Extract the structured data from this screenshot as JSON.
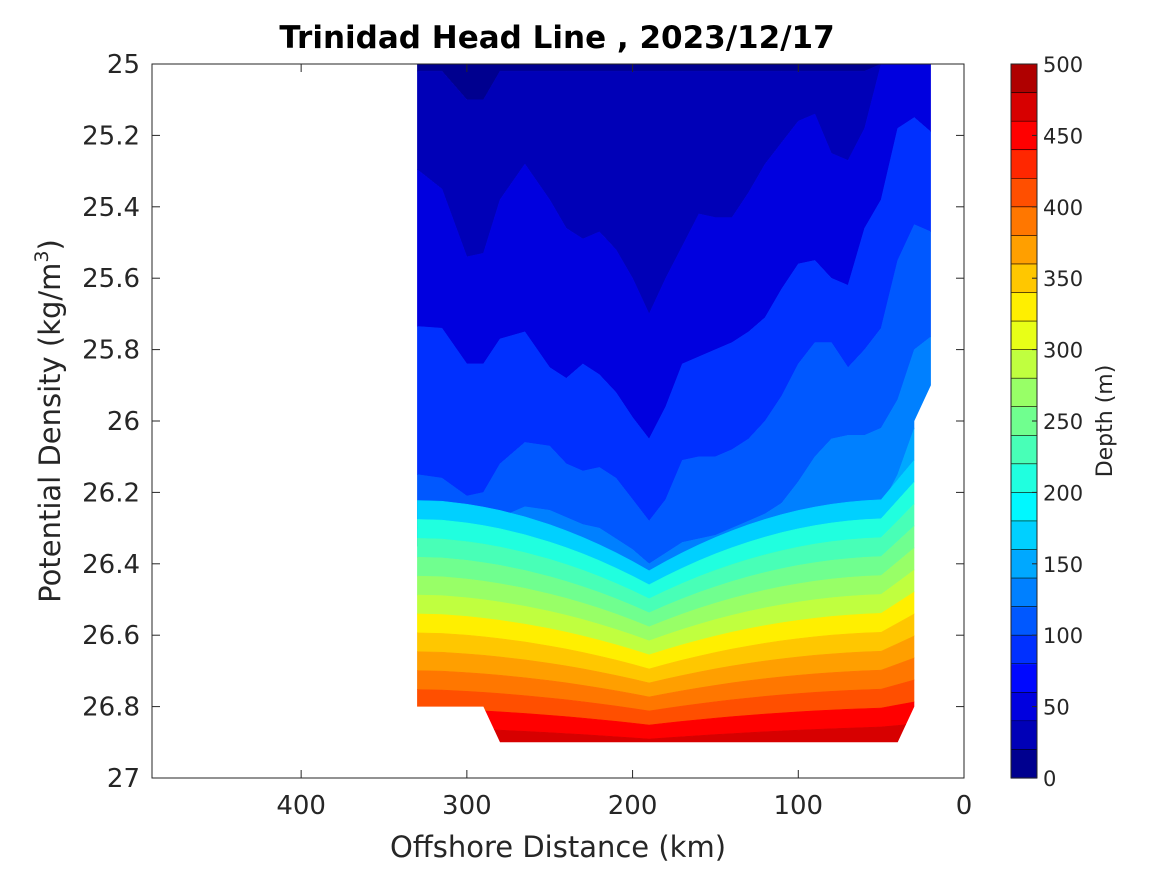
{
  "chart_data": {
    "type": "contour",
    "title": "Trinidad Head Line , 2023/12/17",
    "xlabel": "Offshore Distance (km)",
    "ylabel_main": "Potential Density (kg/m",
    "ylabel_sup": "3",
    "ylabel_close": ")",
    "xlim": [
      490,
      0
    ],
    "ylim": [
      25,
      27
    ],
    "x_reversed": true,
    "y_reversed": true,
    "x_ticks": [
      400,
      300,
      200,
      100,
      0
    ],
    "y_ticks": [
      25,
      25.2,
      25.4,
      25.6,
      25.8,
      26,
      26.2,
      26.4,
      26.6,
      26.8,
      27
    ],
    "x_tick_labels": [
      "400",
      "300",
      "200",
      "100",
      "0"
    ],
    "y_tick_labels": [
      "25",
      "25.2",
      "25.4",
      "25.6",
      "25.8",
      "26",
      "26.2",
      "26.4",
      "26.6",
      "26.8",
      "27"
    ],
    "colorbar": {
      "label": "Depth (m)",
      "min": 0,
      "max": 500,
      "ticks": [
        0,
        50,
        100,
        150,
        200,
        250,
        300,
        350,
        400,
        450,
        500
      ],
      "tick_labels": [
        "0",
        "50",
        "100",
        "150",
        "200",
        "250",
        "300",
        "350",
        "400",
        "450",
        "500"
      ],
      "levels": [
        0,
        25,
        50,
        75,
        100,
        125,
        150,
        175,
        200,
        225,
        250,
        275,
        300,
        325,
        350,
        375,
        400,
        425,
        450,
        475,
        500
      ],
      "colors": [
        "#00008f",
        "#0000b7",
        "#0000df",
        "#0008ff",
        "#0030ff",
        "#0058ff",
        "#0080ff",
        "#00a8ff",
        "#00d0ff",
        "#00f8ff",
        "#20ffdf",
        "#48ffb7",
        "#70ff8f",
        "#98ff67",
        "#c0ff3f",
        "#e8ff17",
        "#ffef00",
        "#ffc700",
        "#ff9f00",
        "#ff7700",
        "#ff4f00",
        "#ff2700",
        "#ff0000",
        "#d70000",
        "#af0000"
      ]
    },
    "data_region": {
      "x_offshore_max_km": 330,
      "x_nearshore_min_km": 20,
      "y_bottom_offshore": 26.8,
      "y_bottom_max": 26.9
    },
    "station_x_km": [
      330,
      315,
      300,
      290,
      280,
      265,
      250,
      240,
      230,
      220,
      210,
      200,
      190,
      180,
      170,
      160,
      150,
      140,
      130,
      120,
      110,
      100,
      90,
      80,
      70,
      60,
      50,
      40,
      30,
      20
    ],
    "isopycnal_depth_contours": [
      {
        "depth_m": 50,
        "y": [
          25.24,
          25.35,
          25.54,
          25.53,
          25.38,
          25.28,
          25.38,
          25.46,
          25.49,
          25.47,
          25.52,
          25.6,
          25.7,
          25.6,
          25.51,
          25.42,
          25.43,
          25.43,
          25.36,
          25.28,
          25.22,
          25.16,
          25.14,
          25.25,
          25.27,
          25.18,
          25.0,
          25.0,
          25.0,
          25.0
        ]
      },
      {
        "depth_m": 75,
        "y": [
          25.73,
          25.74,
          25.84,
          25.84,
          25.77,
          25.75,
          25.85,
          25.88,
          25.84,
          25.87,
          25.92,
          25.99,
          26.05,
          25.96,
          25.84,
          25.82,
          25.8,
          25.78,
          25.75,
          25.71,
          25.63,
          25.56,
          25.55,
          25.6,
          25.62,
          25.46,
          25.38,
          25.18,
          25.15,
          25.25
        ]
      },
      {
        "depth_m": 100,
        "y": [
          26.14,
          26.16,
          26.21,
          26.2,
          26.12,
          26.06,
          26.07,
          26.12,
          26.14,
          26.13,
          26.16,
          26.22,
          26.28,
          26.22,
          26.11,
          26.1,
          26.1,
          26.08,
          26.05,
          26.0,
          25.93,
          25.84,
          25.78,
          25.78,
          25.85,
          25.8,
          25.74,
          25.55,
          25.45,
          25.5
        ]
      },
      {
        "depth_m": 125,
        "y": [
          26.3,
          26.3,
          26.31,
          26.29,
          26.27,
          26.24,
          26.25,
          26.27,
          26.29,
          26.3,
          26.33,
          26.36,
          26.4,
          26.37,
          26.34,
          26.33,
          26.32,
          26.3,
          26.28,
          26.26,
          26.23,
          26.17,
          26.1,
          26.05,
          26.04,
          26.04,
          26.02,
          25.94,
          25.8,
          25.71
        ]
      },
      {
        "depth_m": 150,
        "y": [
          26.35,
          26.35,
          26.36,
          26.36,
          26.35,
          26.34,
          26.36,
          26.37,
          26.39,
          26.4,
          26.42,
          26.45,
          26.47,
          26.45,
          26.43,
          26.43,
          26.42,
          26.41,
          26.4,
          26.39,
          26.38,
          26.36,
          26.34,
          26.31,
          26.28,
          26.26,
          26.24,
          26.15,
          26.02,
          25.9
        ]
      }
    ]
  }
}
